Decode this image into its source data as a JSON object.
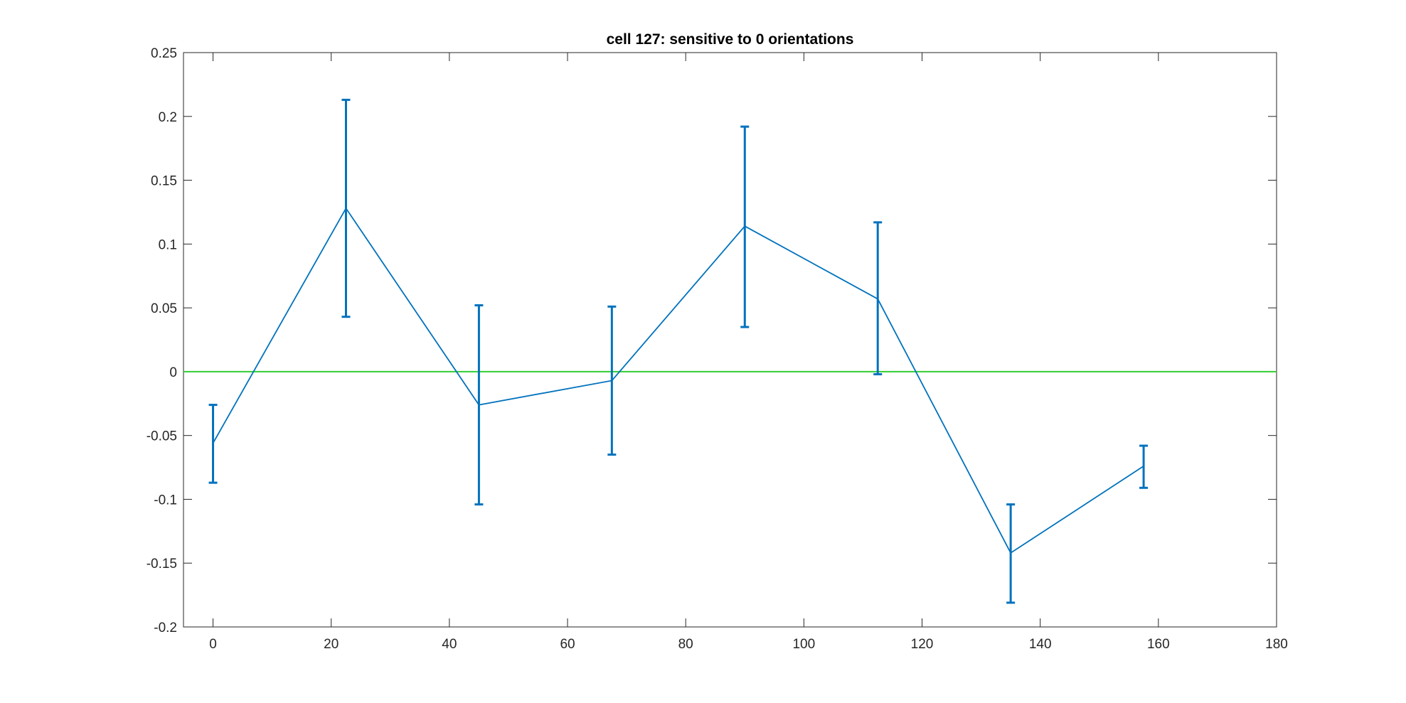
{
  "chart_data": {
    "type": "line",
    "title": "cell 127: sensitive to 0 orientations",
    "xlabel": "",
    "ylabel": "",
    "xlim": [
      -5,
      180
    ],
    "ylim": [
      -0.2,
      0.25
    ],
    "xticks": [
      0,
      20,
      40,
      60,
      80,
      100,
      120,
      140,
      160,
      180
    ],
    "xtick_labels": [
      "0",
      "20",
      "40",
      "60",
      "80",
      "100",
      "120",
      "140",
      "160",
      "180"
    ],
    "yticks": [
      -0.2,
      -0.15,
      -0.1,
      -0.05,
      0,
      0.05,
      0.1,
      0.15,
      0.2,
      0.25
    ],
    "ytick_labels": [
      "-0.2",
      "-0.15",
      "-0.1",
      "-0.05",
      "0",
      "0.05",
      "0.1",
      "0.15",
      "0.2",
      "0.25"
    ],
    "grid": false,
    "series": [
      {
        "x": [
          0,
          22.5,
          45,
          67.5,
          90,
          112.5,
          135,
          157.5
        ],
        "y": [
          -0.056,
          0.128,
          -0.026,
          -0.007,
          0.114,
          0.057,
          -0.142,
          -0.074
        ],
        "err_low": [
          -0.087,
          0.043,
          -0.104,
          -0.065,
          0.035,
          -0.002,
          -0.181,
          -0.091
        ],
        "err_high": [
          -0.026,
          0.213,
          0.052,
          0.051,
          0.192,
          0.117,
          -0.104,
          -0.058
        ],
        "color": "#0072bd"
      }
    ],
    "reference_line": {
      "y": 0,
      "color": "#33cc33"
    }
  }
}
